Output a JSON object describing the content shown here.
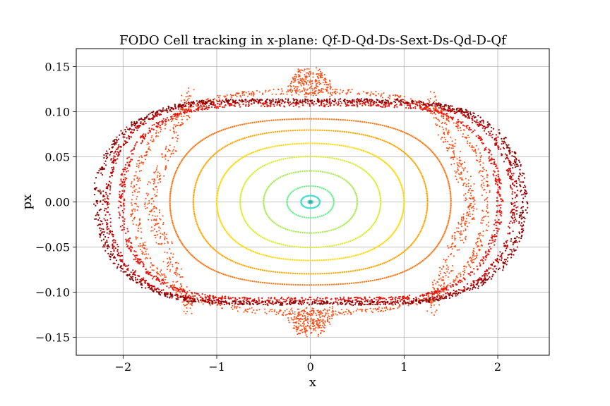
{
  "chart_data": {
    "type": "scatter",
    "title": "FODO Cell tracking in x-plane: Qf-D-Qd-Ds-Sext-Ds-Qd-D-Qf",
    "xlabel": "x",
    "ylabel": "px",
    "xlim": [
      -2.5,
      2.55
    ],
    "ylim": [
      -0.17,
      0.17
    ],
    "xticks": [
      -2,
      -1,
      0,
      1,
      2
    ],
    "xtick_labels": [
      "−2",
      "−1",
      "0",
      "1",
      "2"
    ],
    "yticks": [
      -0.15,
      -0.1,
      -0.05,
      0.0,
      0.05,
      0.1,
      0.15
    ],
    "ytick_labels": [
      "−0.15",
      "−0.10",
      "−0.05",
      "0.00",
      "0.05",
      "0.10",
      "0.15"
    ],
    "grid": true,
    "series": [
      {
        "kind": "orbit",
        "x_amplitude": 0.02,
        "px_amplitude": 0.001,
        "color": "#5fd3c8"
      },
      {
        "kind": "orbit",
        "x_amplitude": 0.1,
        "px_amplitude": 0.007,
        "color": "#40e0d0"
      },
      {
        "kind": "orbit",
        "x_amplitude": 0.25,
        "px_amplitude": 0.018,
        "color": "#66f08a"
      },
      {
        "kind": "orbit",
        "x_amplitude": 0.5,
        "px_amplitude": 0.036,
        "color": "#a6ec4f"
      },
      {
        "kind": "orbit",
        "x_amplitude": 0.75,
        "px_amplitude": 0.054,
        "color": "#d8ee2c"
      },
      {
        "kind": "orbit",
        "x_amplitude": 1.0,
        "px_amplitude": 0.071,
        "color": "#ffd700"
      },
      {
        "kind": "orbit",
        "x_amplitude": 1.25,
        "px_amplitude": 0.089,
        "color": "#ffa500"
      },
      {
        "kind": "orbit",
        "x_amplitude": 1.5,
        "px_amplitude": 0.105,
        "color": "#ff7514"
      },
      {
        "kind": "separatrix",
        "x_fixed_point": 1.73,
        "px_peak": 0.145,
        "color": "#ff4a10"
      },
      {
        "kind": "outer",
        "x_amplitude": 2.02,
        "px_amplitude": 0.142,
        "color": "#e8140a"
      },
      {
        "kind": "outer",
        "x_amplitude": 2.18,
        "px_amplitude": 0.147,
        "color": "#c00000"
      },
      {
        "kind": "outer",
        "x_amplitude": 2.28,
        "px_amplitude": 0.148,
        "color": "#8b0000"
      }
    ]
  }
}
